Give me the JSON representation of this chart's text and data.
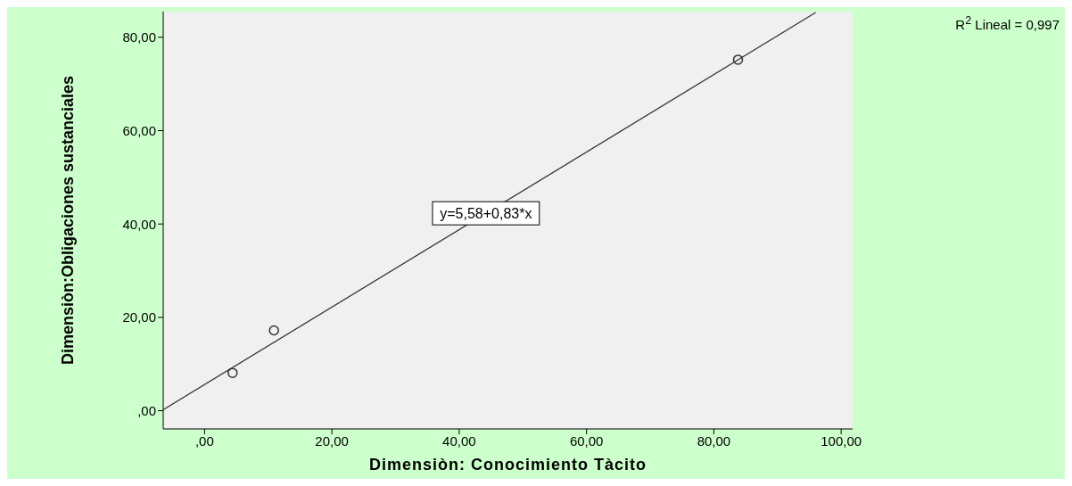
{
  "chart_data": {
    "type": "scatter",
    "xlabel": "Dimensiòn: Conocimiento Tàcito",
    "ylabel": "Dimensiòn:Obligaciones sustanciales",
    "xlim": [
      -6.5,
      101.8
    ],
    "ylim": [
      -3.9,
      85.5
    ],
    "xticks": [
      {
        "value": 0,
        "label": ",00"
      },
      {
        "value": 20,
        "label": "20,00"
      },
      {
        "value": 40,
        "label": "40,00"
      },
      {
        "value": 60,
        "label": "60,00"
      },
      {
        "value": 80,
        "label": "80,00"
      },
      {
        "value": 100,
        "label": "100,00"
      }
    ],
    "yticks": [
      {
        "value": 0,
        "label": ",00"
      },
      {
        "value": 20,
        "label": "20,00"
      },
      {
        "value": 40,
        "label": "40,00"
      },
      {
        "value": 60,
        "label": "60,00"
      },
      {
        "value": 80,
        "label": "80,00"
      }
    ],
    "series": [
      {
        "color": "#333333",
        "x": [
          4.4,
          10.9,
          83.8
        ],
        "values": [
          8.1,
          17.2,
          75.2
        ],
        "marker": "circle"
      },
      {
        "type": "line",
        "color": "#333333",
        "x": [
          -6.5,
          96
        ],
        "values": [
          0.2,
          85.3
        ],
        "marker": "none"
      }
    ],
    "annotations": [
      {
        "text": "y=5,58+0,83*x",
        "x": 44.2,
        "y": 42.3
      },
      "R$^{2}$ Lineal = 0,997"
    ],
    "grid": false
  }
}
